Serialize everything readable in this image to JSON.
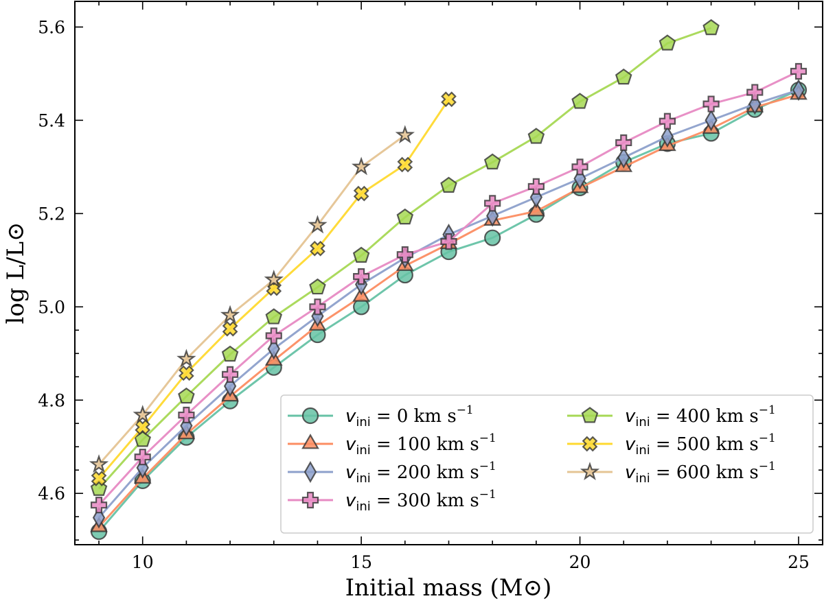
{
  "chart_data": {
    "type": "line",
    "xlabel": "Initial mass (M⊙)",
    "ylabel": "log L/L⊙",
    "xlim": [
      8.45,
      25.55
    ],
    "ylim": [
      4.49,
      5.655
    ],
    "xticks": [
      10,
      15,
      20,
      25
    ],
    "xtick_labels": [
      "10",
      "15",
      "20",
      "25"
    ],
    "yticks": [
      4.6,
      4.8,
      5.0,
      5.2,
      5.4,
      5.6
    ],
    "ytick_labels": [
      "4.6",
      "4.8",
      "5.0",
      "5.2",
      "5.4",
      "5.6"
    ],
    "grid": false,
    "legend_position": "lower-right",
    "legend_columns": 2,
    "series": [
      {
        "name": "v_ini = 0 km s^-1",
        "legend_prefix": "v",
        "legend_sub": "ini",
        "legend_value": "= 0 km s",
        "legend_exp": "−1",
        "marker": "circle",
        "color": "#66c2a5",
        "x": [
          9,
          10,
          11,
          12,
          13,
          14,
          15,
          16,
          17,
          18,
          19,
          20,
          21,
          22,
          23,
          24,
          25
        ],
        "y": [
          4.518,
          4.627,
          4.72,
          4.798,
          4.87,
          4.94,
          5.0,
          5.068,
          5.118,
          5.148,
          5.198,
          5.255,
          5.31,
          5.35,
          5.372,
          5.423,
          5.465
        ]
      },
      {
        "name": "v_ini = 100 km s^-1",
        "legend_prefix": "v",
        "legend_sub": "ini",
        "legend_value": "= 100 km s",
        "legend_exp": "−1",
        "marker": "triangle",
        "color": "#fc8d62",
        "x": [
          9,
          10,
          11,
          12,
          13,
          14,
          15,
          16,
          17,
          18,
          19,
          20,
          21,
          22,
          23,
          24,
          25
        ],
        "y": [
          4.528,
          4.632,
          4.727,
          4.808,
          4.885,
          4.96,
          5.022,
          5.088,
          5.135,
          5.185,
          5.205,
          5.255,
          5.3,
          5.345,
          5.382,
          5.428,
          5.455
        ]
      },
      {
        "name": "v_ini = 200 km s^-1",
        "legend_prefix": "v",
        "legend_sub": "ini",
        "legend_value": "= 200 km s",
        "legend_exp": "−1",
        "marker": "diamond",
        "color": "#8da0cb",
        "x": [
          9,
          10,
          11,
          12,
          13,
          14,
          15,
          16,
          17,
          18,
          19,
          20,
          21,
          22,
          23,
          24,
          25
        ],
        "y": [
          4.548,
          4.655,
          4.745,
          4.83,
          4.91,
          4.98,
          5.048,
          5.105,
          5.155,
          5.195,
          5.235,
          5.275,
          5.32,
          5.365,
          5.4,
          5.435,
          5.465
        ]
      },
      {
        "name": "v_ini = 300 km s^-1",
        "legend_prefix": "v",
        "legend_sub": "ini",
        "legend_value": "= 300 km s",
        "legend_exp": "−1",
        "marker": "plus",
        "color": "#e78ac3",
        "x": [
          9,
          10,
          11,
          12,
          13,
          14,
          15,
          16,
          17,
          18,
          19,
          20,
          21,
          22,
          23,
          24,
          25
        ],
        "y": [
          4.575,
          4.678,
          4.768,
          4.855,
          4.938,
          5.0,
          5.065,
          5.112,
          5.14,
          5.222,
          5.258,
          5.3,
          5.352,
          5.398,
          5.435,
          5.46,
          5.505
        ]
      },
      {
        "name": "v_ini = 400 km s^-1",
        "legend_prefix": "v",
        "legend_sub": "ini",
        "legend_value": "= 400 km s",
        "legend_exp": "−1",
        "marker": "pentagon",
        "color": "#a6d854",
        "x": [
          9,
          10,
          11,
          12,
          13,
          14,
          15,
          16,
          17,
          18,
          19,
          20,
          21,
          22,
          23
        ],
        "y": [
          4.61,
          4.715,
          4.808,
          4.898,
          4.978,
          5.042,
          5.11,
          5.192,
          5.26,
          5.31,
          5.365,
          5.44,
          5.492,
          5.565,
          5.598
        ]
      },
      {
        "name": "v_ini = 500 km s^-1",
        "legend_prefix": "v",
        "legend_sub": "ini",
        "legend_value": "= 500 km s",
        "legend_exp": "−1",
        "marker": "x",
        "color": "#ffd92f",
        "x": [
          9,
          10,
          11,
          12,
          13,
          14,
          15,
          16,
          17
        ],
        "y": [
          4.632,
          4.742,
          4.858,
          4.953,
          5.04,
          5.125,
          5.243,
          5.305,
          5.445
        ]
      },
      {
        "name": "v_ini = 600 km s^-1",
        "legend_prefix": "v",
        "legend_sub": "ini",
        "legend_value": "= 600 km s",
        "legend_exp": "−1",
        "marker": "star",
        "color": "#e5c494",
        "x": [
          9,
          10,
          11,
          12,
          13,
          14,
          15,
          16
        ],
        "y": [
          4.662,
          4.768,
          4.888,
          4.982,
          5.058,
          5.175,
          5.3,
          5.368
        ]
      }
    ]
  }
}
